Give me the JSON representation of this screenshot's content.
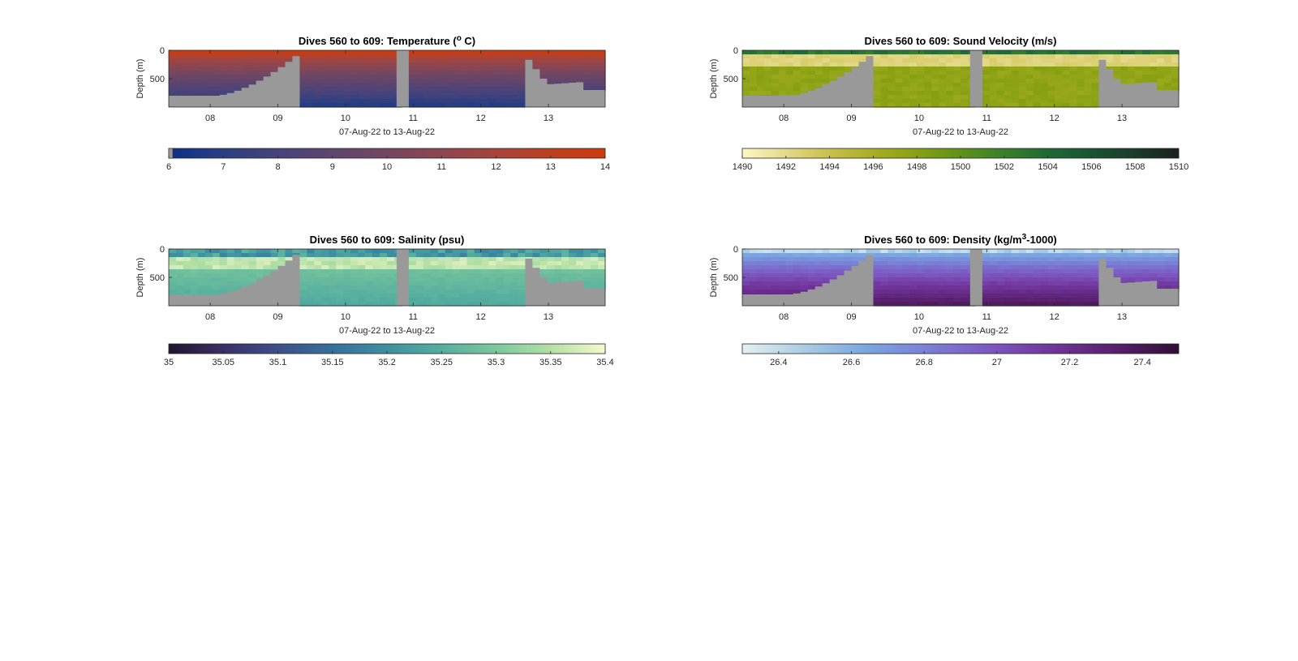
{
  "chart_data": [
    {
      "type": "heatmap",
      "title_prefix": "Dives 560 to 609: Temperature (",
      "title_sup": "o",
      "title_suffix": " C)",
      "xlabel": "07-Aug-22 to 13-Aug-22",
      "ylabel": "Depth (m)",
      "x_ticks": [
        "08",
        "09",
        "10",
        "11",
        "12",
        "13"
      ],
      "y_ticks": [
        "0",
        "500"
      ],
      "colorbar": {
        "min": 6,
        "max": 14,
        "ticks": [
          "6",
          "7",
          "8",
          "9",
          "10",
          "11",
          "12",
          "13",
          "14"
        ],
        "colors": [
          "#0b2f8a",
          "#2b3f82",
          "#47437a",
          "#5e456e",
          "#744661",
          "#8d4650",
          "#a6443b",
          "#bd3f20",
          "#cc3a0c"
        ]
      },
      "surface_value": 13.5,
      "deep_value": 6.5,
      "colormap_gradient": "vertical"
    },
    {
      "type": "heatmap",
      "title_prefix": "Dives 560 to 609: Sound Velocity (m/s)",
      "title_sup": "",
      "title_suffix": "",
      "xlabel": "07-Aug-22 to 13-Aug-22",
      "ylabel": "Depth (m)",
      "x_ticks": [
        "08",
        "09",
        "10",
        "11",
        "12",
        "13"
      ],
      "y_ticks": [
        "0",
        "500"
      ],
      "colorbar": {
        "min": 1490,
        "max": 1510,
        "ticks": [
          "1490",
          "1492",
          "1494",
          "1496",
          "1498",
          "1500",
          "1502",
          "1504",
          "1506",
          "1508",
          "1510"
        ],
        "colors": [
          "#fbf8c4",
          "#e4d98a",
          "#c9bf4a",
          "#a9ae24",
          "#87a012",
          "#5f921b",
          "#3a7f2a",
          "#1f6a35",
          "#1a5433",
          "#1b3b2a",
          "#1a221c"
        ]
      },
      "surface_value": 1503,
      "deep_value": 1497.5,
      "colormap_gradient": "banded"
    },
    {
      "type": "heatmap",
      "title_prefix": "Dives 560 to 609: Salinity (psu)",
      "title_sup": "",
      "title_suffix": "",
      "xlabel": "07-Aug-22 to 13-Aug-22",
      "ylabel": "Depth (m)",
      "x_ticks": [
        "08",
        "09",
        "10",
        "11",
        "12",
        "13"
      ],
      "y_ticks": [
        "0",
        "500"
      ],
      "colorbar": {
        "min": 35,
        "max": 35.4,
        "ticks": [
          "35",
          "35.05",
          "35.1",
          "35.15",
          "35.2",
          "35.25",
          "35.3",
          "35.35",
          "35.4"
        ],
        "colors": [
          "#231530",
          "#3b2f66",
          "#3d4f8a",
          "#36709a",
          "#3f8fa0",
          "#55ae9f",
          "#7cc79b",
          "#b3e0a6",
          "#f6f8cd"
        ]
      },
      "surface_value": 35.33,
      "deep_value": 35.24,
      "colormap_gradient": "vertical"
    },
    {
      "type": "heatmap",
      "title_prefix": "Dives 560 to 609: Density (kg/m",
      "title_sup": "3",
      "title_suffix": "-1000)",
      "xlabel": "07-Aug-22 to 13-Aug-22",
      "ylabel": "Depth (m)",
      "x_ticks": [
        "08",
        "09",
        "10",
        "11",
        "12",
        "13"
      ],
      "y_ticks": [
        "0",
        "500"
      ],
      "colorbar": {
        "min": 26.3,
        "max": 27.5,
        "ticks": [
          "26.4",
          "26.6",
          "26.8",
          "27",
          "27.2",
          "27.4"
        ],
        "colors": [
          "#e5f0f0",
          "#a9cce2",
          "#7aa5e0",
          "#7a7ed6",
          "#7d56c0",
          "#70349a",
          "#571f6b",
          "#2f0f34"
        ]
      },
      "surface_value": 26.5,
      "deep_value": 27.4,
      "colormap_gradient": "vertical"
    }
  ]
}
